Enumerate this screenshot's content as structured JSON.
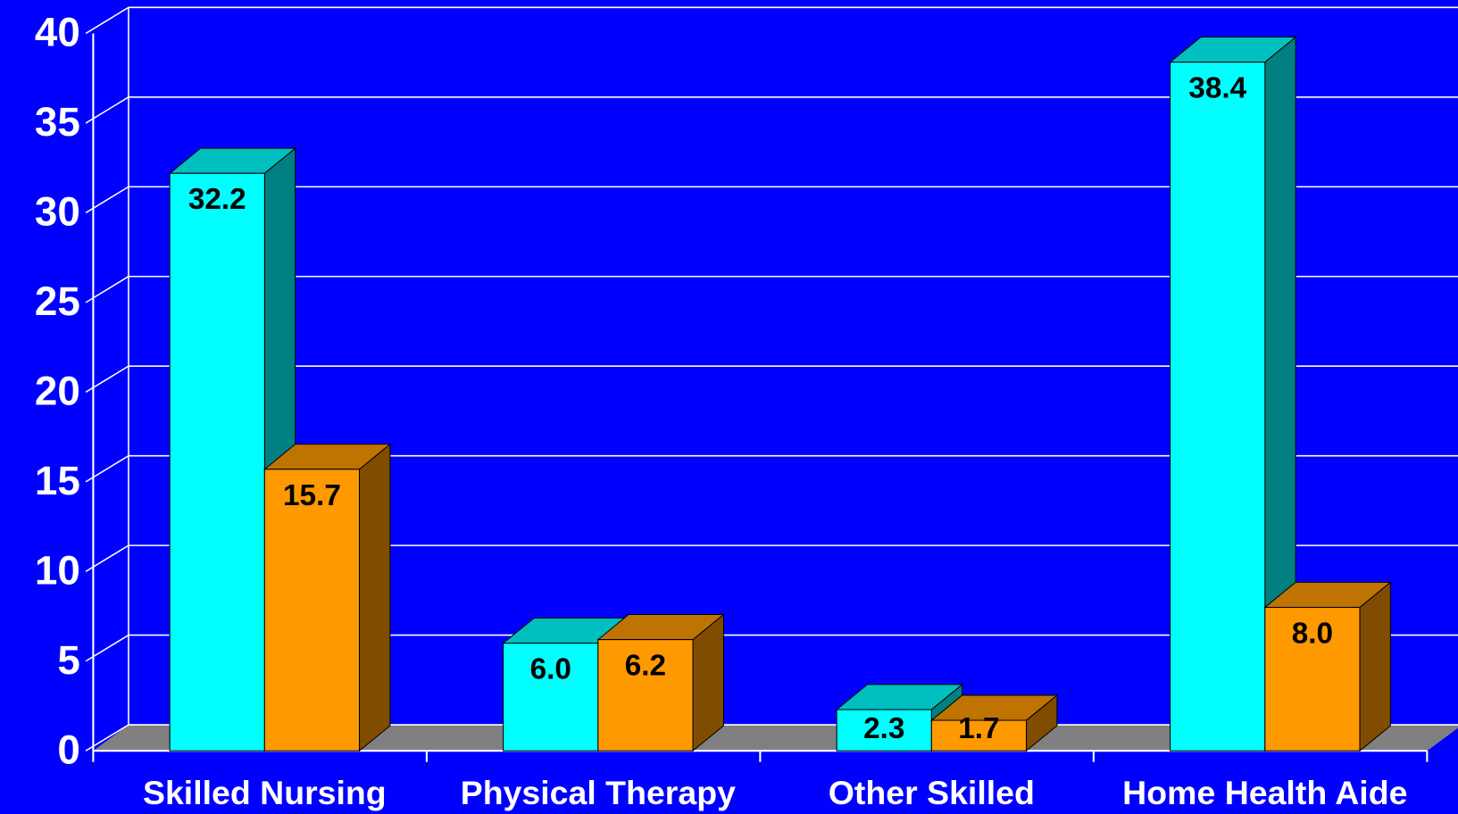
{
  "chart_data": {
    "type": "bar3d",
    "categories": [
      "Skilled Nursing",
      "Physical Therapy",
      "Other Skilled",
      "Home Health Aide"
    ],
    "series": [
      {
        "color": "#00ffff",
        "values": [
          32.2,
          6.0,
          2.3,
          38.4
        ],
        "value_labels": [
          "32.2",
          "6.0",
          "2.3",
          "38.4"
        ]
      },
      {
        "color": "#ff9900",
        "values": [
          15.7,
          6.2,
          1.7,
          8.0
        ],
        "value_labels": [
          "15.7",
          "6.2",
          "1.7",
          "8.0"
        ]
      }
    ],
    "ylim": [
      0,
      40
    ],
    "yticks": [
      0,
      5,
      10,
      15,
      20,
      25,
      30,
      35,
      40
    ],
    "grid": true
  }
}
